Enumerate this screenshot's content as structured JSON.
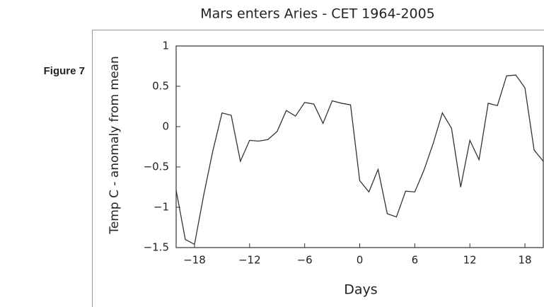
{
  "figure_label": "Figure 7",
  "chart_data": {
    "type": "line",
    "title": "Mars enters Aries - CET 1964-2005",
    "xlabel": "Days",
    "ylabel": "Temp C - anomaly from mean",
    "x": [
      -20,
      -19,
      -18,
      -17,
      -16,
      -15,
      -14,
      -13,
      -12,
      -11,
      -10,
      -9,
      -8,
      -7,
      -6,
      -5,
      -4,
      -3,
      -2,
      -1,
      0,
      1,
      2,
      3,
      4,
      5,
      6,
      7,
      8,
      9,
      10,
      11,
      12,
      13,
      14,
      15,
      16,
      17,
      18,
      19,
      20
    ],
    "series": [
      {
        "color": "#333333",
        "values": [
          -0.79,
          -1.4,
          -1.46,
          -0.85,
          -0.3,
          0.17,
          0.14,
          -0.43,
          -0.17,
          -0.18,
          -0.16,
          -0.06,
          0.2,
          0.13,
          0.3,
          0.28,
          0.04,
          0.32,
          0.29,
          0.27,
          -0.67,
          -0.81,
          -0.53,
          -1.08,
          -1.12,
          -0.8,
          -0.81,
          -0.54,
          -0.21,
          0.17,
          -0.02,
          -0.75,
          -0.17,
          -0.41,
          0.29,
          0.26,
          0.63,
          0.64,
          0.48,
          -0.29,
          -0.43
        ]
      }
    ],
    "xlim": [
      -20,
      20
    ],
    "xticks": [
      {
        "value": -18,
        "label": "−18"
      },
      {
        "value": -12,
        "label": "−12"
      },
      {
        "value": -6,
        "label": "−6"
      },
      0,
      6,
      12,
      18
    ],
    "ylim": [
      -1.5,
      1
    ],
    "yticks": [
      {
        "value": -1.5,
        "label": "−1.5"
      },
      {
        "value": -1,
        "label": "−1"
      },
      {
        "value": -0.5,
        "label": "−0.5"
      },
      0,
      0.5,
      1
    ]
  }
}
